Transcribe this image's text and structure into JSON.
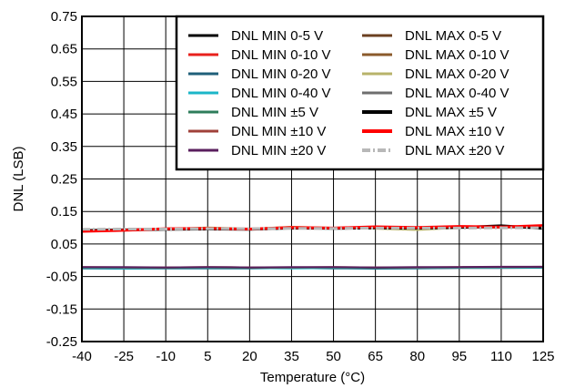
{
  "chart_data": {
    "type": "line",
    "title": "",
    "xlabel": "Temperature (°C)",
    "ylabel": "DNL (LSB)",
    "xlim": [
      -40,
      125
    ],
    "ylim": [
      -0.25,
      0.75
    ],
    "x_ticks": [
      -40,
      -25,
      -10,
      5,
      20,
      35,
      50,
      65,
      80,
      95,
      110,
      125
    ],
    "y_ticks": [
      -0.25,
      -0.15,
      -0.05,
      0.05,
      0.15,
      0.25,
      0.35,
      0.45,
      0.55,
      0.65,
      0.75
    ],
    "x_tick_labels": [
      "-40",
      "-25",
      "-10",
      "5",
      "20",
      "35",
      "50",
      "65",
      "80",
      "95",
      "110",
      "125"
    ],
    "y_tick_labels": [
      "-0.25",
      "-0.15",
      "-0.05",
      "0.05",
      "0.15",
      "0.25",
      "0.35",
      "0.45",
      "0.55",
      "0.65",
      "0.75"
    ],
    "grid": true,
    "legend_position": "top-right",
    "x": [
      -40,
      -25,
      -10,
      5,
      20,
      35,
      50,
      65,
      80,
      95,
      110,
      125
    ],
    "series": [
      {
        "name": "DNL MIN 0-5 V",
        "color": "#000000",
        "style": "solid",
        "values": [
          -0.022,
          -0.023,
          -0.023,
          -0.022,
          -0.024,
          -0.023,
          -0.022,
          -0.023,
          -0.023,
          -0.022,
          -0.022,
          -0.021
        ]
      },
      {
        "name": "DNL MIN 0-10 V",
        "color": "#e8211c",
        "style": "solid",
        "values": [
          -0.023,
          -0.024,
          -0.023,
          -0.023,
          -0.024,
          -0.024,
          -0.023,
          -0.023,
          -0.024,
          -0.023,
          -0.023,
          -0.022
        ]
      },
      {
        "name": "DNL MIN 0-20 V",
        "color": "#1f5f7a",
        "style": "solid",
        "values": [
          -0.025,
          -0.026,
          -0.025,
          -0.025,
          -0.025,
          -0.024,
          -0.025,
          -0.026,
          -0.025,
          -0.024,
          -0.024,
          -0.023
        ]
      },
      {
        "name": "DNL MIN 0-40 V",
        "color": "#1bb6c8",
        "style": "solid",
        "values": [
          -0.024,
          -0.025,
          -0.024,
          -0.024,
          -0.024,
          -0.025,
          -0.024,
          -0.024,
          -0.024,
          -0.023,
          -0.023,
          -0.022
        ]
      },
      {
        "name": "DNL MIN ±5 V",
        "color": "#2e7d5b",
        "style": "solid",
        "values": [
          -0.022,
          -0.022,
          -0.023,
          -0.022,
          -0.023,
          -0.022,
          -0.022,
          -0.023,
          -0.022,
          -0.022,
          -0.021,
          -0.021
        ]
      },
      {
        "name": "DNL MIN ±10 V",
        "color": "#a0413a",
        "style": "solid",
        "values": [
          -0.021,
          -0.022,
          -0.022,
          -0.021,
          -0.022,
          -0.022,
          -0.021,
          -0.022,
          -0.022,
          -0.021,
          -0.021,
          -0.02
        ]
      },
      {
        "name": "DNL MIN ±20 V",
        "color": "#5a1f5e",
        "style": "solid",
        "values": [
          -0.021,
          -0.021,
          -0.022,
          -0.021,
          -0.022,
          -0.021,
          -0.021,
          -0.022,
          -0.021,
          -0.021,
          -0.02,
          -0.02
        ]
      },
      {
        "name": "DNL MAX 0-5 V",
        "color": "#6b4020",
        "style": "solid",
        "values": [
          0.091,
          0.094,
          0.096,
          0.098,
          0.097,
          0.1,
          0.098,
          0.1,
          0.098,
          0.101,
          0.102,
          0.103
        ]
      },
      {
        "name": "DNL MAX 0-10 V",
        "color": "#8b5a2b",
        "style": "solid",
        "values": [
          0.09,
          0.093,
          0.095,
          0.097,
          0.096,
          0.099,
          0.099,
          0.101,
          0.099,
          0.102,
          0.101,
          0.104
        ]
      },
      {
        "name": "DNL MAX 0-20 V",
        "color": "#b8b36a",
        "style": "solid",
        "values": [
          0.092,
          0.094,
          0.096,
          0.101,
          0.097,
          0.103,
          0.1,
          0.097,
          0.093,
          0.1,
          0.101,
          0.102
        ]
      },
      {
        "name": "DNL MAX 0-40 V",
        "color": "#6e6e6e",
        "style": "solid",
        "values": [
          0.093,
          0.095,
          0.095,
          0.096,
          0.097,
          0.098,
          0.099,
          0.099,
          0.099,
          0.1,
          0.101,
          0.101
        ]
      },
      {
        "name": "DNL MAX ±5 V",
        "color": "#000000",
        "style": "solid",
        "values": [
          0.091,
          0.093,
          0.095,
          0.096,
          0.095,
          0.099,
          0.098,
          0.1,
          0.099,
          0.101,
          0.106,
          0.098
        ]
      },
      {
        "name": "DNL MAX ±10 V",
        "color": "#ff0000",
        "style": "solid",
        "values": [
          0.089,
          0.092,
          0.097,
          0.098,
          0.096,
          0.101,
          0.099,
          0.103,
          0.101,
          0.104,
          0.102,
          0.107
        ]
      },
      {
        "name": "DNL MAX ±20 V",
        "color": "#b8b8b8",
        "style": "dashdot",
        "values": [
          0.095,
          0.096,
          0.096,
          0.097,
          0.097,
          0.098,
          0.098,
          0.099,
          0.099,
          0.099,
          0.1,
          0.1
        ]
      }
    ]
  }
}
